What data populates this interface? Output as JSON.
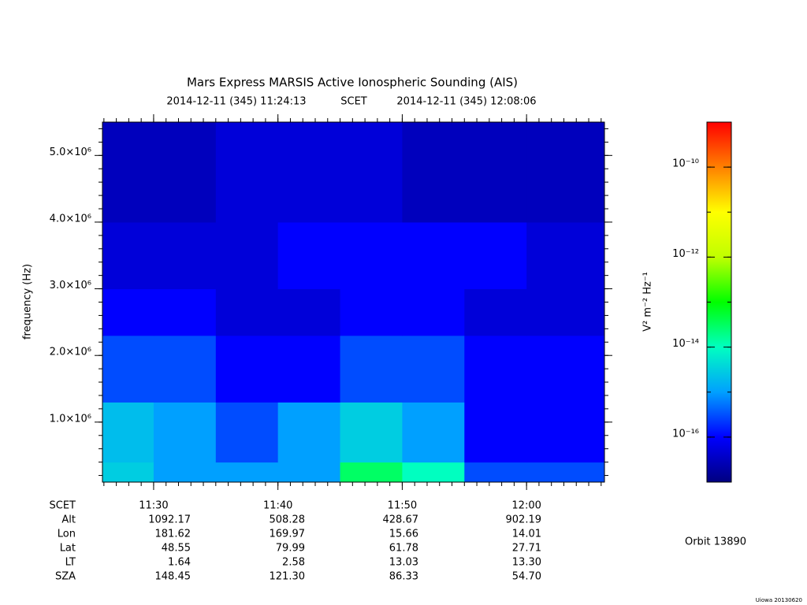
{
  "chart_data": {
    "type": "heatmap",
    "title": "Mars Express MARSIS Active Ionospheric Sounding (AIS)",
    "start_time": "2014-12-11 (345) 11:24:13",
    "time_system": "SCET",
    "end_time": "2014-12-11 (345) 12:08:06",
    "ylabel": "frequency (Hz)",
    "xlim": [
      "11:25:53",
      "12:06:16"
    ],
    "xticks": [
      "11:30",
      "11:40",
      "11:50",
      "12:00"
    ],
    "ylim": [
      100000,
      5500000
    ],
    "yticks": [
      {
        "value": 1000000,
        "label": "1.0×10⁶"
      },
      {
        "value": 2000000,
        "label": "2.0×10⁶"
      },
      {
        "value": 3000000,
        "label": "3.0×10⁶"
      },
      {
        "value": 4000000,
        "label": "4.0×10⁶"
      },
      {
        "value": 5000000,
        "label": "5.0×10⁶"
      }
    ],
    "x_bins": [
      "11:25:53",
      "11:30",
      "11:35",
      "11:40",
      "11:45",
      "11:50",
      "11:55",
      "12:00",
      "12:06:16"
    ],
    "y_bins": [
      100000,
      400000,
      1300000,
      2300000,
      3000000,
      4000000,
      5500000
    ],
    "z": [
      [
        3e-15,
        1e-15,
        1e-15,
        1e-15,
        3e-14,
        1e-14,
        3e-16,
        3e-16
      ],
      [
        2e-15,
        1e-15,
        3e-16,
        1e-15,
        3e-15,
        1e-15,
        1e-16,
        1e-16
      ],
      [
        3e-16,
        3e-16,
        1e-16,
        1e-16,
        3e-16,
        3e-16,
        1e-16,
        1e-16
      ],
      [
        1e-16,
        1e-16,
        5e-17,
        5e-17,
        1e-16,
        1e-16,
        5e-17,
        5e-17
      ],
      [
        5e-17,
        5e-17,
        5e-17,
        1e-16,
        1e-16,
        1e-16,
        1e-16,
        5e-17
      ],
      [
        3e-17,
        3e-17,
        5e-17,
        5e-17,
        5e-17,
        3e-17,
        3e-17,
        3e-17
      ]
    ],
    "colorbar": {
      "label": "V² m⁻² Hz⁻¹",
      "log": true,
      "zlim": [
        1e-17,
        1e-09
      ],
      "ticks": [
        {
          "value": 1e-16,
          "label": "10⁻¹⁶"
        },
        {
          "value": 1e-14,
          "label": "10⁻¹⁴"
        },
        {
          "value": 1e-12,
          "label": "10⁻¹²"
        },
        {
          "value": 1e-10,
          "label": "10⁻¹⁰"
        }
      ],
      "colormap": [
        "#000080",
        "#0000ff",
        "#00a0ff",
        "#00ffc0",
        "#00ff00",
        "#c0ff00",
        "#ffff00",
        "#ff8000",
        "#ff0000"
      ]
    },
    "ephemeris": {
      "row_labels": [
        "SCET",
        "Alt",
        "Lon",
        "Lat",
        "LT",
        "SZA"
      ],
      "rows": [
        [
          "1092.17",
          "508.28",
          "428.67",
          "902.19"
        ],
        [
          "181.62",
          "169.97",
          "15.66",
          "14.01"
        ],
        [
          "48.55",
          "79.99",
          "61.78",
          "27.71"
        ],
        [
          "1.64",
          "2.58",
          "13.03",
          "13.30"
        ],
        [
          "148.45",
          "121.30",
          "86.33",
          "54.70"
        ]
      ]
    },
    "orbit": "Orbit 13890",
    "credit": "Uiowa 20130620"
  }
}
